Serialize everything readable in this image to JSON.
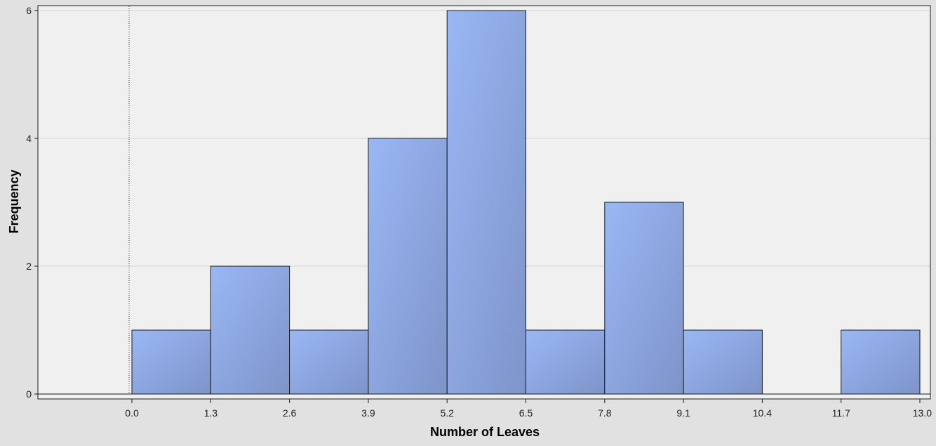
{
  "chart_data": {
    "type": "bar",
    "subtype": "histogram",
    "xlabel": "Number of Leaves",
    "ylabel": "Frequency",
    "xlim": [
      -1.0,
      13.15
    ],
    "ylim": [
      0,
      6.1
    ],
    "x_ticks": [
      "0.0",
      "1.3",
      "2.6",
      "3.9",
      "5.2",
      "6.5",
      "7.8",
      "9.1",
      "10.4",
      "11.7",
      "13.0"
    ],
    "y_ticks": [
      "0",
      "2",
      "4",
      "6"
    ],
    "bin_edges": [
      0.0,
      1.3,
      2.6,
      3.9,
      5.2,
      6.5,
      7.8,
      9.1,
      10.4,
      11.7,
      13.0
    ],
    "values": [
      1,
      2,
      1,
      4,
      6,
      1,
      3,
      1,
      0,
      1
    ],
    "reference_line_x": 0,
    "grid": true,
    "legend": "none",
    "colors": {
      "bar_light": "#99b5f3",
      "bar_dark": "#7f97cc",
      "bar_edge": "#1a1a1a",
      "plot_bg": "#f0f0f0",
      "page_bg": "#e1e1e1"
    }
  }
}
